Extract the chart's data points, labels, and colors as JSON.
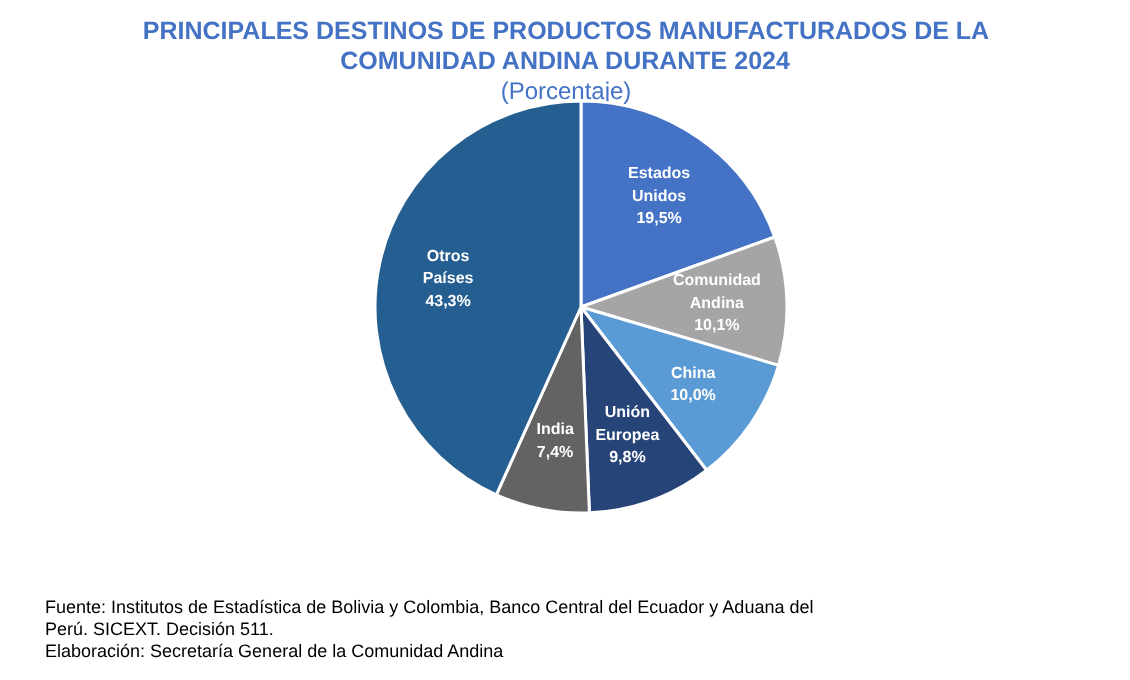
{
  "chart_data": {
    "type": "pie",
    "title": "PRINCIPALES DESTINOS DE PRODUCTOS MANUFACTURADOS DE LA COMUNIDAD ANDINA DURANTE 2024",
    "subtitle": "(Porcentaje)",
    "categories": [
      "Estados Unidos",
      "Comunidad Andina",
      "China",
      "Unión Europea",
      "India",
      "Otros Países"
    ],
    "values": [
      19.5,
      10.1,
      10.0,
      9.8,
      7.4,
      43.3
    ],
    "value_labels": [
      "19,5%",
      "10,1%",
      "10,0%",
      "9,8%",
      "7,4%",
      "43,3%"
    ],
    "colors": [
      "#4472c4",
      "#a5a5a5",
      "#5b9bd5",
      "#264478",
      "#636363",
      "#255e91"
    ],
    "annotations": [
      "Fuente: Institutos de Estadística de Bolivia y Colombia, Banco Central del Ecuador y Aduana del Perú. SICEXT. Decisión 511.",
      "Elaboración: Secretaría General de la Comunidad Andina"
    ]
  }
}
